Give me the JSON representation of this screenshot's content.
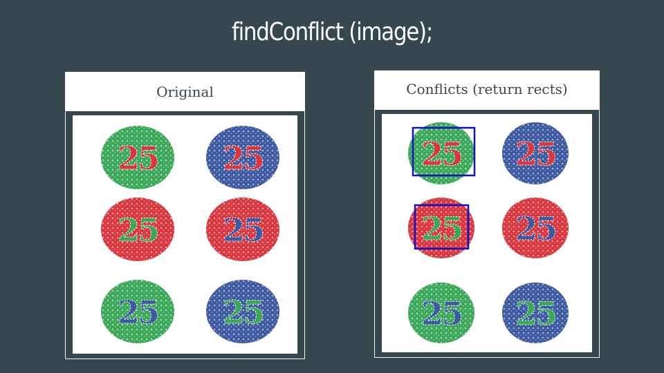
{
  "slide": {
    "title": "findConflict (image);"
  },
  "panels": {
    "original": {
      "title": "Original"
    },
    "conflicts": {
      "title": "Conflicts (return rects)"
    }
  },
  "plates": [
    {
      "label": "25",
      "background": "#3aa858",
      "digits": "#d9363e"
    },
    {
      "label": "25",
      "background": "#3d5aa0",
      "digits": "#d9363e"
    },
    {
      "label": "25",
      "background": "#d9363e",
      "digits": "#3aa858"
    },
    {
      "label": "25",
      "background": "#d9363e",
      "digits": "#3d5aa0"
    },
    {
      "label": "25",
      "background": "#3aa858",
      "digits": "#3d5aa0"
    },
    {
      "label": "25",
      "background": "#3d5aa0",
      "digits": "#3aa858"
    }
  ],
  "conflict_plates": [
    0,
    2
  ],
  "colors": {
    "slide_bg": "#37474f",
    "conflict_rect": "#1010c8"
  }
}
